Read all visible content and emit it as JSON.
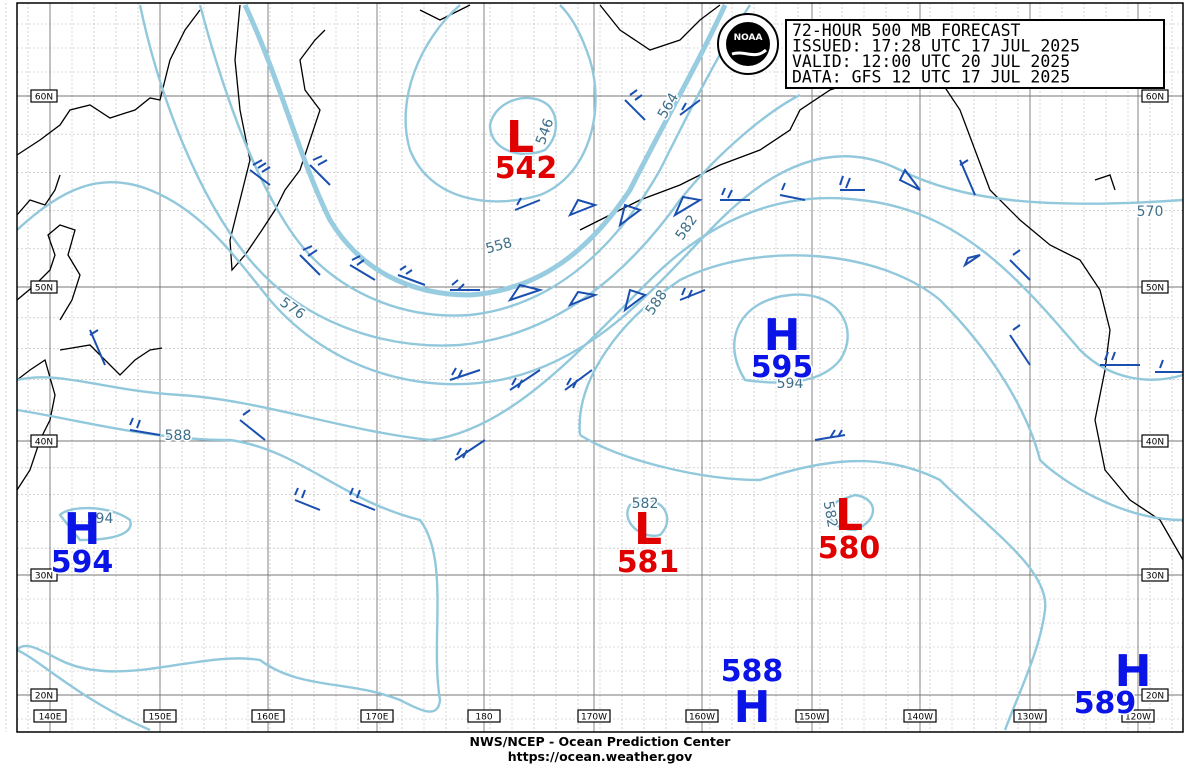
{
  "header": {
    "lines": [
      "72-HOUR 500 MB FORECAST",
      "ISSUED: 17:28 UTC 17 JUL 2025",
      "VALID:  12:00 UTC 20 JUL 2025",
      "DATA:  GFS 12 UTC 17 JUL 2025"
    ]
  },
  "latitude_labels": [
    "60N",
    "50N",
    "40N",
    "30N",
    "20N"
  ],
  "longitude_labels": [
    "140E",
    "150E",
    "160E",
    "170E",
    "180",
    "170W",
    "160W",
    "150W",
    "140W",
    "130W",
    "120W"
  ],
  "centers": [
    {
      "symbol": "L",
      "value": "542"
    },
    {
      "symbol": "H",
      "value": "595"
    },
    {
      "symbol": "H",
      "value": "594"
    },
    {
      "symbol": "L",
      "value": "581"
    },
    {
      "symbol": "L",
      "value": "580"
    },
    {
      "symbol": "H",
      "value": "588"
    },
    {
      "symbol": "H",
      "value": "589"
    }
  ],
  "contour_labels": [
    "546",
    "558",
    "564",
    "576",
    "582",
    "588",
    "594",
    "588",
    "582",
    "582",
    "570",
    "594"
  ],
  "footer": {
    "line1": "NWS/NCEP - Ocean Prediction Center",
    "line2": "https://ocean.weather.gov"
  }
}
